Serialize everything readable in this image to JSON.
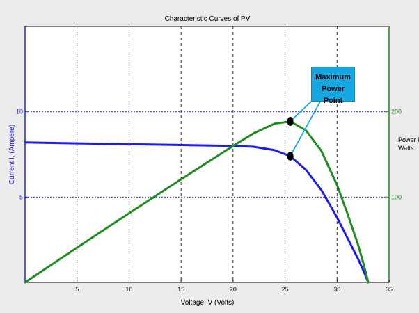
{
  "chart_data": {
    "type": "line",
    "title": "Characteristic Curves of PV",
    "xlabel": "Voltage, V (Volts)",
    "ylabel_left": "Current I, (Ampere)",
    "ylabel_right": [
      "Power P,",
      "Watts"
    ],
    "xlim": [
      0,
      35
    ],
    "ylim_left": [
      0,
      15
    ],
    "ylim_right": [
      0,
      300
    ],
    "x_ticks": [
      5,
      10,
      15,
      20,
      25,
      30,
      35
    ],
    "y_ticks_left": [
      5,
      10
    ],
    "y_ticks_right": [
      100,
      200
    ],
    "grid": true,
    "colors": {
      "current": "#1a1aff",
      "power": "#1e8c1e",
      "axis_left": "#2020ff",
      "axis_right": "#1e8c1e",
      "callout": "#14a7e2"
    },
    "series": [
      {
        "axis": "left",
        "x": [
          0,
          5,
          10,
          15,
          20,
          22,
          24,
          25.5,
          27,
          28.5,
          30,
          31,
          32,
          32.6,
          33
        ],
        "y": [
          8.2,
          8.15,
          8.1,
          8.05,
          8.0,
          7.95,
          7.75,
          7.4,
          6.6,
          5.4,
          3.8,
          2.6,
          1.4,
          0.6,
          0
        ]
      },
      {
        "axis": "right",
        "x": [
          0,
          5,
          10,
          15,
          20,
          22,
          24,
          25.5,
          27,
          28.5,
          30,
          31,
          32,
          32.6,
          33
        ],
        "y": [
          0,
          40.8,
          81,
          120.8,
          160,
          174.9,
          186,
          188.7,
          178.2,
          153.9,
          114,
          80.6,
          44.8,
          19.6,
          0
        ]
      }
    ],
    "annotations": [
      {
        "text": [
          "Maximum",
          "Power Point"
        ],
        "points": [
          {
            "x": 25.5,
            "y": 188.7,
            "axis": "right"
          },
          {
            "x": 25.5,
            "y": 7.4,
            "axis": "left"
          }
        ]
      }
    ]
  }
}
